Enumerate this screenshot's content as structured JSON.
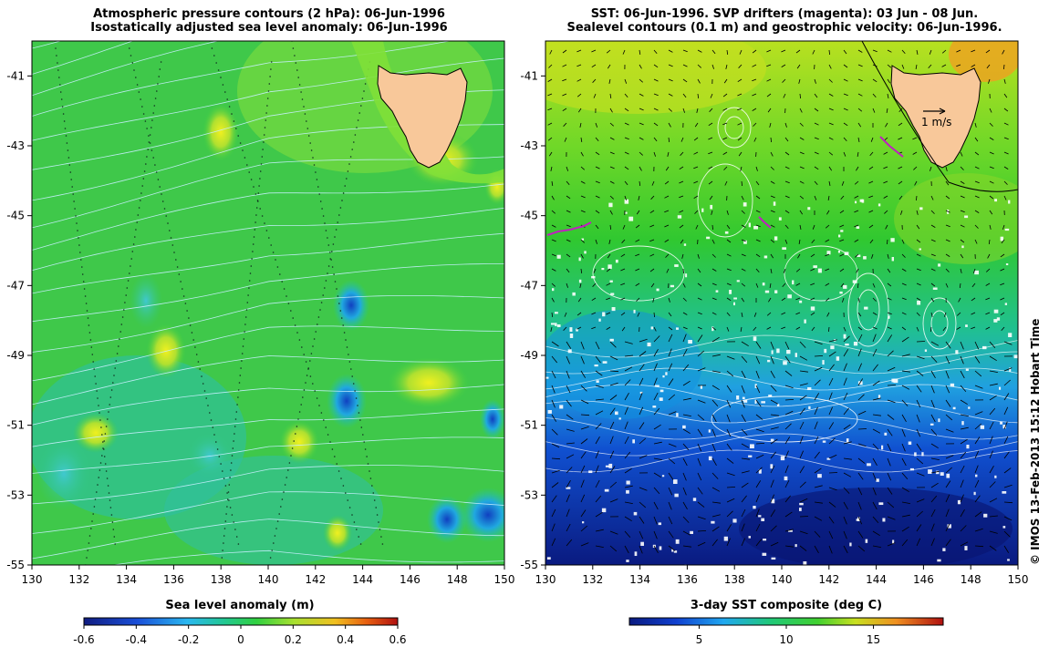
{
  "left_panel": {
    "title_line1": "Atmospheric pressure contours (2 hPa): 06-Jun-1996",
    "title_line2": "Isostatically adjusted sea level anomaly: 06-Jun-1996",
    "colorbar_label": "Sea level anomaly (m)",
    "colorbar_ticks": [
      "-0.6",
      "-0.4",
      "-0.2",
      "0",
      "0.2",
      "0.4",
      "0.6"
    ],
    "colorbar_range": [
      -0.6,
      0.6
    ]
  },
  "right_panel": {
    "title_line1": "SST: 06-Jun-1996. SVP drifters (magenta): 03 Jun - 08 Jun.",
    "title_line2": "Sealevel contours (0.1 m) and geostrophic velocity: 06-Jun-1996.",
    "colorbar_label": "3-day SST composite (deg C)",
    "colorbar_ticks": [
      "5",
      "10",
      "15"
    ],
    "colorbar_range": [
      1,
      19
    ],
    "vector_scale_label": "1 m/s"
  },
  "axes": {
    "lon_ticks": [
      "130",
      "132",
      "134",
      "136",
      "138",
      "140",
      "142",
      "144",
      "146",
      "148",
      "150"
    ],
    "lat_ticks": [
      "-41",
      "-43",
      "-45",
      "-47",
      "-49",
      "-51",
      "-53",
      "-55"
    ],
    "lon_range": [
      130,
      150
    ],
    "lat_range": [
      -55,
      -40
    ]
  },
  "credit": "© IMOS 13-Feb-2013 15:12 Hobart Time",
  "colors": {
    "land": "#f8c89a",
    "coast": "#000000",
    "pressure_contours": "#c8f0ff",
    "sla_contours": "#ffffff",
    "drifters": "#c020c0",
    "vectors": "#000000"
  }
}
